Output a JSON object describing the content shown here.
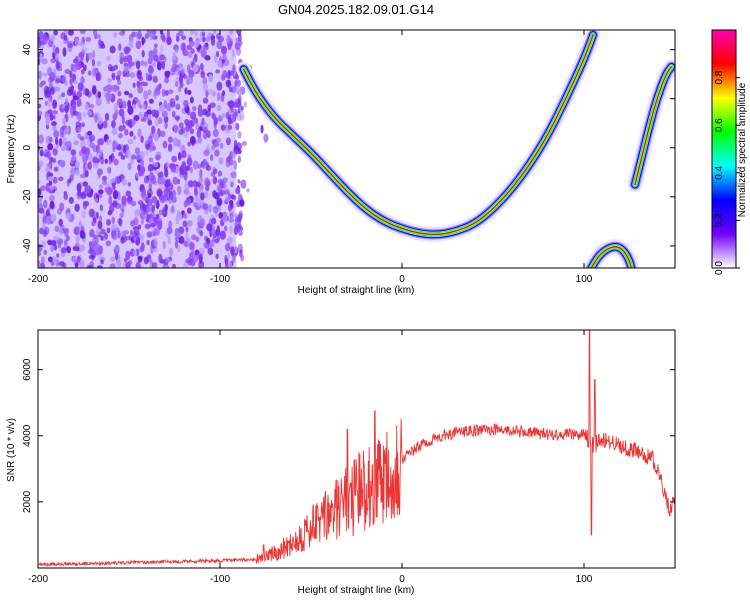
{
  "figure": {
    "title": "GN04.2025.182.09.01.G14"
  },
  "chart_data": [
    {
      "type": "heatmap",
      "name": "spectrogram",
      "xlabel": "Height of straight line (km)",
      "ylabel": "Frequency (Hz)",
      "xlim": [
        -200,
        150
      ],
      "ylim": [
        -49,
        48
      ],
      "xticks": [
        -200,
        -100,
        0,
        100
      ],
      "yticks": [
        -40,
        -20,
        0,
        20,
        40
      ],
      "colorbar": {
        "label": "Normalized spectral amplitude",
        "range": [
          0.0,
          1.0
        ],
        "ticks": [
          "0.0",
          "0.2",
          "0.4",
          "0.6",
          "0.8"
        ],
        "colors": [
          "#ffffff",
          "#7000ff",
          "#0000ff",
          "#00ffff",
          "#00ff00",
          "#ffff00",
          "#ff0000",
          "#ff00b0"
        ]
      },
      "noise_region": {
        "x_range": [
          -200,
          -80
        ],
        "amplitude": 0.2
      },
      "tracks": [
        {
          "points": [
            [
              -87,
              32
            ],
            [
              -80,
              22
            ],
            [
              -70,
              12
            ],
            [
              -60,
              5
            ],
            [
              -50,
              -2
            ],
            [
              -40,
              -10
            ],
            [
              -30,
              -18
            ],
            [
              -20,
              -25
            ],
            [
              -10,
              -30
            ],
            [
              0,
              -33
            ],
            [
              10,
              -35
            ],
            [
              20,
              -35.5
            ],
            [
              30,
              -34
            ],
            [
              40,
              -31
            ],
            [
              50,
              -25
            ],
            [
              60,
              -17
            ],
            [
              70,
              -7
            ],
            [
              80,
              5
            ],
            [
              90,
              20
            ],
            [
              100,
              36
            ],
            [
              105,
              46
            ]
          ]
        },
        {
          "points": [
            [
              128,
              -15
            ],
            [
              132,
              -3
            ],
            [
              136,
              9
            ],
            [
              140,
              20
            ],
            [
              145,
              30
            ],
            [
              148,
              33
            ]
          ]
        },
        {
          "points": [
            [
              104,
              -49
            ],
            [
              108,
              -44
            ],
            [
              113,
              -41
            ],
            [
              118,
              -40
            ],
            [
              122,
              -42
            ],
            [
              125,
              -46
            ],
            [
              126,
              -49
            ]
          ]
        }
      ]
    },
    {
      "type": "line",
      "name": "snr",
      "xlabel": "Height of straight line (km)",
      "ylabel": "SNR (10 * v/v)",
      "xlim": [
        -200,
        150
      ],
      "ylim": [
        0,
        7200
      ],
      "xticks": [
        -200,
        -100,
        0,
        100
      ],
      "yticks": [
        2000,
        4000,
        6000
      ],
      "color": "#ee3333",
      "x": [
        -200,
        -180,
        -160,
        -140,
        -120,
        -100,
        -85,
        -78,
        -72,
        -65,
        -60,
        -55,
        -50,
        -45,
        -40,
        -35,
        -30,
        -25,
        -20,
        -15,
        -10,
        -5,
        0,
        5,
        10,
        15,
        20,
        25,
        30,
        40,
        50,
        60,
        70,
        80,
        90,
        95,
        100,
        105,
        110,
        120,
        130,
        138,
        143,
        147,
        150
      ],
      "y": [
        100,
        120,
        150,
        180,
        200,
        220,
        250,
        300,
        400,
        600,
        800,
        1000,
        1200,
        1400,
        1600,
        1800,
        2000,
        2200,
        2500,
        2700,
        2900,
        3100,
        3300,
        3500,
        3700,
        3850,
        3950,
        4050,
        4100,
        4150,
        4200,
        4150,
        4100,
        4050,
        4050,
        4050,
        4050,
        3700,
        3900,
        3700,
        3500,
        3300,
        2500,
        1800,
        2000
      ],
      "spikes": [
        [
          -76,
          700
        ],
        [
          -30,
          4200
        ],
        [
          -15,
          4750
        ],
        [
          103,
          7200
        ],
        [
          104,
          1000
        ],
        [
          106,
          5700
        ]
      ]
    }
  ]
}
